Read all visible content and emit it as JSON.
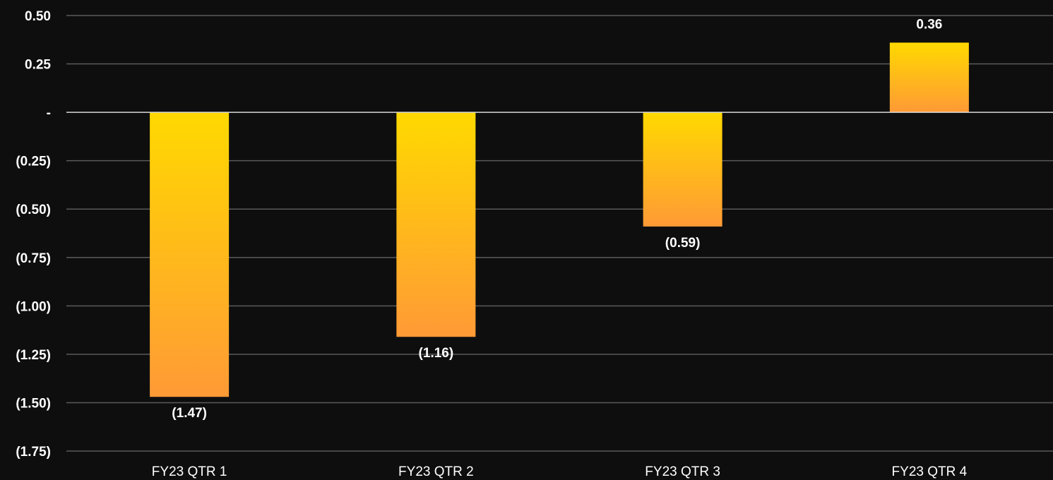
{
  "chart_data": {
    "type": "bar",
    "categories": [
      "FY23 QTR 1",
      "FY23 QTR 2",
      "FY23 QTR 3",
      "FY23 QTR 4"
    ],
    "values": [
      -1.47,
      -1.16,
      -0.59,
      0.36
    ],
    "data_labels": [
      "(1.47)",
      "(1.16)",
      "(0.59)",
      "0.36"
    ],
    "ylim": [
      -1.75,
      0.5
    ],
    "yticks": [
      0.5,
      0.25,
      0,
      -0.25,
      -0.5,
      -0.75,
      -1.0,
      -1.25,
      -1.5,
      -1.75
    ],
    "ytick_labels": [
      "0.50",
      "0.25",
      "-",
      "(0.25)",
      "(0.50)",
      "(0.75)",
      "(1.00)",
      "(1.25)",
      "(1.50)",
      "(1.75)"
    ],
    "title": "",
    "xlabel": "",
    "ylabel": "",
    "grid": true,
    "legend": "none",
    "colors": {
      "background": "#0e0e0e",
      "bar_gradient_top": "#ffd900",
      "bar_gradient_bottom": "#ff9a36",
      "grid": "#5a5a5a",
      "zero_line": "#d9d9d9",
      "text": "#ffffff"
    }
  }
}
